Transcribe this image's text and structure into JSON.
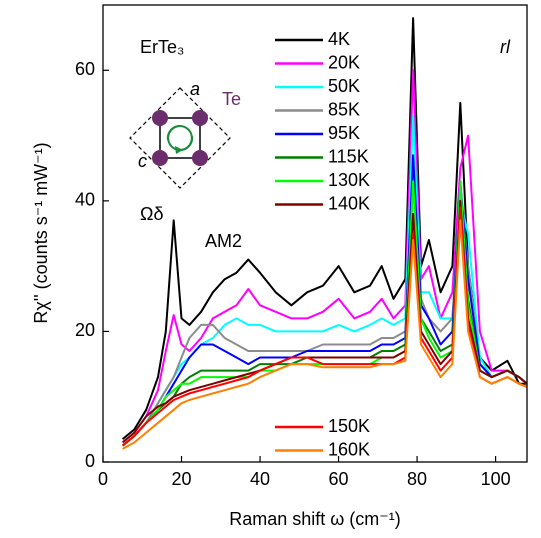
{
  "chart_data": {
    "type": "line",
    "x_label": "Raman shift ω (cm⁻¹)",
    "y_label": "Rχ'' (counts s⁻¹ mW⁻¹)",
    "annotations": {
      "compound": "ErTe₃",
      "polarization": "rl",
      "atom": "Te",
      "axis_a": "a",
      "axis_c": "c",
      "mode": "Ωδ",
      "amplitude_mode": "AM2"
    },
    "xlim": [
      0,
      108
    ],
    "ylim": [
      0,
      70
    ],
    "xticks": [
      0,
      20,
      40,
      60,
      80,
      100
    ],
    "yticks": [
      0,
      20,
      40,
      60
    ],
    "x": [
      5,
      8,
      11,
      14,
      16,
      18,
      20,
      22,
      25,
      28,
      31,
      34,
      37,
      40,
      44,
      48,
      52,
      56,
      60,
      64,
      68,
      71,
      74,
      77,
      79,
      81,
      83,
      86,
      89,
      91,
      93,
      96,
      99,
      103,
      106,
      108
    ],
    "series": [
      {
        "name": "4K",
        "color": "#000000",
        "values": [
          3.5,
          5,
          8,
          13,
          20,
          37,
          22,
          21,
          23,
          26,
          28,
          29,
          31,
          29,
          26,
          24,
          26,
          27,
          30,
          26,
          27,
          30,
          25,
          28,
          68,
          30,
          34,
          26,
          30,
          55,
          30,
          16,
          14,
          15.5,
          12,
          12
        ]
      },
      {
        "name": "20K",
        "color": "#ff00ff",
        "values": [
          3,
          4.5,
          7,
          11,
          17,
          22.5,
          18,
          17,
          19,
          22,
          23,
          24,
          26.5,
          24,
          23,
          22,
          22,
          23,
          25,
          22,
          23,
          25,
          22,
          24,
          60,
          28,
          30,
          22,
          26,
          45,
          50,
          20,
          14,
          14,
          13,
          12
        ]
      },
      {
        "name": "50K",
        "color": "#00ffff",
        "values": [
          2.5,
          4,
          6,
          9,
          11,
          13,
          15,
          16,
          18,
          19,
          21,
          22,
          21,
          21,
          20,
          20,
          20,
          20,
          21,
          20,
          21,
          22,
          21,
          22,
          53,
          26,
          26,
          22,
          22,
          40,
          35,
          16,
          13,
          14,
          13,
          12
        ]
      },
      {
        "name": "85K",
        "color": "#8c8c8c",
        "values": [
          2.5,
          4,
          6,
          9,
          11,
          13,
          16,
          19,
          21,
          21,
          19,
          18,
          17,
          17,
          17,
          17,
          17,
          18,
          18,
          18,
          18,
          19,
          19,
          20,
          45,
          25,
          22,
          20,
          22,
          42,
          30,
          15,
          13,
          14,
          13,
          12
        ]
      },
      {
        "name": "95K",
        "color": "#0000ff",
        "values": [
          2.5,
          4,
          6,
          8,
          10,
          12,
          14,
          16,
          18,
          18,
          17,
          16,
          15,
          16,
          16,
          16,
          17,
          17,
          17,
          17,
          17,
          18,
          18,
          19,
          47,
          24,
          22,
          18,
          20,
          43,
          28,
          15,
          13,
          14,
          13,
          12
        ]
      },
      {
        "name": "115K",
        "color": "#007f00",
        "values": [
          2.5,
          4,
          6,
          8,
          9,
          10,
          12,
          13,
          14,
          14,
          14,
          14,
          14,
          15,
          15,
          15,
          16,
          16,
          16,
          16,
          16,
          17,
          17,
          18,
          43,
          22,
          20,
          17,
          18,
          42,
          25,
          14,
          13,
          14,
          13,
          12
        ]
      },
      {
        "name": "130K",
        "color": "#00ff00",
        "values": [
          2.5,
          4,
          6,
          8,
          10,
          11,
          12,
          12,
          13,
          13,
          13,
          13,
          13,
          14,
          14,
          15,
          15,
          15,
          15,
          15,
          15,
          16,
          16,
          17,
          43,
          22,
          19,
          16,
          17,
          43,
          24,
          14,
          13,
          14,
          13,
          12
        ]
      },
      {
        "name": "140K",
        "color": "#7f0000",
        "values": [
          3,
          4.5,
          7,
          8.5,
          9,
          10,
          10.5,
          11,
          11.5,
          12,
          12.5,
          13,
          13.5,
          14,
          15,
          16,
          16,
          16,
          16,
          16,
          16,
          16,
          16,
          17,
          38,
          20,
          18,
          15,
          17,
          40,
          22,
          14,
          13,
          14,
          13,
          12
        ]
      },
      {
        "name": "150K",
        "color": "#ff0000",
        "values": [
          2.5,
          4,
          6,
          7.5,
          8.5,
          9.5,
          10,
          10.5,
          11,
          11.5,
          12,
          12.5,
          13,
          14,
          15,
          16,
          16,
          15,
          15,
          15,
          15,
          15,
          15,
          16,
          35,
          19,
          17,
          14,
          16,
          39,
          21,
          13,
          12,
          13,
          12,
          11.5
        ]
      },
      {
        "name": "160K",
        "color": "#ff8000",
        "values": [
          2,
          3,
          4.5,
          6,
          7,
          8,
          9,
          9.5,
          10,
          10.5,
          11,
          11.5,
          12,
          13,
          14,
          15,
          15,
          14.5,
          14.5,
          14.5,
          14.5,
          15,
          15,
          15.5,
          34,
          18,
          16,
          13,
          15,
          37,
          20,
          13,
          12,
          13,
          12,
          11.5
        ]
      }
    ]
  }
}
